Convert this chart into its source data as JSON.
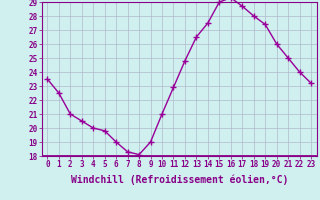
{
  "x": [
    0,
    1,
    2,
    3,
    4,
    5,
    6,
    7,
    8,
    9,
    10,
    11,
    12,
    13,
    14,
    15,
    16,
    17,
    18,
    19,
    20,
    21,
    22,
    23
  ],
  "y": [
    23.5,
    22.5,
    21.0,
    20.5,
    20.0,
    19.8,
    19.0,
    18.3,
    18.1,
    19.0,
    21.0,
    22.9,
    24.8,
    26.5,
    27.5,
    29.0,
    29.3,
    28.7,
    28.0,
    27.4,
    26.0,
    25.0,
    24.0,
    23.2
  ],
  "line_color": "#990099",
  "marker": "+",
  "markersize": 4,
  "linewidth": 1.0,
  "markeredgewidth": 1.0,
  "xlabel": "Windchill (Refroidissement éolien,°C)",
  "xlim": [
    -0.5,
    23.5
  ],
  "ylim": [
    18,
    29
  ],
  "yticks": [
    18,
    19,
    20,
    21,
    22,
    23,
    24,
    25,
    26,
    27,
    28,
    29
  ],
  "xticks": [
    0,
    1,
    2,
    3,
    4,
    5,
    6,
    7,
    8,
    9,
    10,
    11,
    12,
    13,
    14,
    15,
    16,
    17,
    18,
    19,
    20,
    21,
    22,
    23
  ],
  "bg_color": "#cff0ee",
  "plot_bg_color": "#cff0ee",
  "grid_color": "#b0b8cc",
  "tick_color": "#880088",
  "label_color": "#880088",
  "tick_fontsize": 5.5,
  "label_fontsize": 7.0,
  "spine_color": "#880088",
  "separator_color": "#880088",
  "separator_linewidth": 2.0
}
